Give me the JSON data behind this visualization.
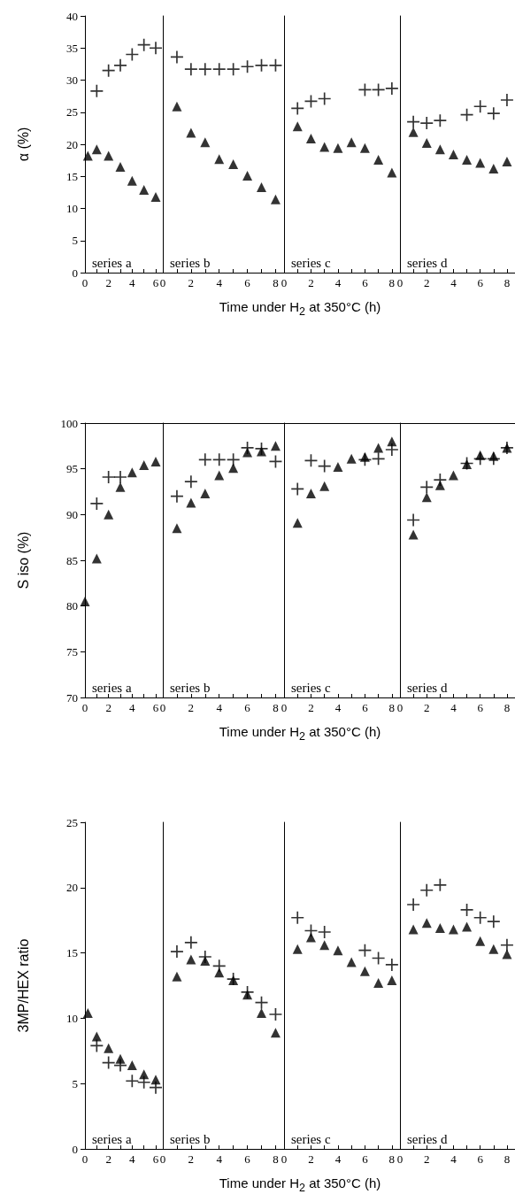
{
  "chart_data": [
    {
      "type": "scatter",
      "ylabel": "α (%)",
      "xlabel": "Time under H$_{2}$ at 350°C (h)",
      "annotations": [
        "series a"
      ],
      "xlim": [
        0,
        6.6
      ],
      "xticks": [
        0,
        {
          "value": 1,
          "label": null
        },
        2,
        {
          "value": 3,
          "label": null
        },
        4,
        {
          "value": 5,
          "label": null
        },
        6
      ],
      "ylim": [
        0,
        40
      ],
      "yticks": [
        0,
        5,
        10,
        15,
        20,
        25,
        30,
        35,
        40
      ],
      "grid": false,
      "series": [
        {
          "color": "#000000",
          "marker": "triangle",
          "x": [
            0.25,
            1,
            2,
            3,
            4,
            5,
            6
          ],
          "values": [
            18.2,
            19.2,
            18.2,
            16.5,
            14.3,
            12.9,
            11.8
          ]
        },
        {
          "color": "#000000",
          "marker": "cross",
          "x": [
            1,
            2,
            3,
            4,
            5,
            6
          ],
          "values": [
            28.3,
            31.5,
            32.3,
            34,
            35.5,
            35
          ]
        }
      ]
    },
    {
      "type": "scatter",
      "annotations": [
        "series b"
      ],
      "tick_labels": "x",
      "xlim": [
        0,
        8.6
      ],
      "xticks": [
        0,
        {
          "value": 1,
          "label": null
        },
        2,
        {
          "value": 3,
          "label": null
        },
        4,
        {
          "value": 5,
          "label": null
        },
        6,
        {
          "value": 7,
          "label": null
        },
        8
      ],
      "ylim": [
        0,
        40
      ],
      "grid": false,
      "series": [
        {
          "color": "#000000",
          "marker": "triangle",
          "x": [
            1,
            2,
            3,
            4,
            5,
            6,
            7,
            8
          ],
          "values": [
            25.9,
            21.8,
            20.3,
            17.7,
            16.9,
            15.1,
            13.3,
            11.4
          ]
        },
        {
          "color": "#000000",
          "marker": "cross",
          "x": [
            1,
            2,
            3,
            4,
            5,
            6,
            7,
            8
          ],
          "values": [
            33.6,
            31.7,
            31.7,
            31.7,
            31.7,
            32.1,
            32.3,
            32.3
          ]
        }
      ]
    },
    {
      "type": "scatter",
      "annotations": [
        "series c"
      ],
      "tick_labels": "x",
      "xlim": [
        0,
        8.6
      ],
      "xticks": [
        0,
        {
          "value": 1,
          "label": null
        },
        2,
        {
          "value": 3,
          "label": null
        },
        4,
        {
          "value": 5,
          "label": null
        },
        6,
        {
          "value": 7,
          "label": null
        },
        8
      ],
      "ylim": [
        0,
        40
      ],
      "grid": false,
      "series": [
        {
          "color": "#000000",
          "marker": "triangle",
          "x": [
            1,
            2,
            3,
            4,
            5,
            6,
            7,
            8
          ],
          "values": [
            22.8,
            20.9,
            19.6,
            19.4,
            20.3,
            19.4,
            17.6,
            15.6
          ]
        },
        {
          "color": "#000000",
          "marker": "cross",
          "x": [
            1,
            2,
            3,
            6,
            7,
            8
          ],
          "values": [
            25.6,
            26.7,
            27.1,
            28.5,
            28.5,
            28.7
          ]
        }
      ]
    },
    {
      "type": "scatter",
      "annotations": [
        "series d"
      ],
      "tick_labels": "x",
      "xlim": [
        0,
        8.6
      ],
      "xticks": [
        0,
        {
          "value": 1,
          "label": null
        },
        2,
        {
          "value": 3,
          "label": null
        },
        4,
        {
          "value": 5,
          "label": null
        },
        6,
        {
          "value": 7,
          "label": null
        },
        8
      ],
      "ylim": [
        0,
        40
      ],
      "grid": false,
      "series": [
        {
          "color": "#000000",
          "marker": "triangle",
          "x": [
            1,
            2,
            3,
            4,
            5,
            6,
            7,
            8
          ],
          "values": [
            21.9,
            20.2,
            19.2,
            18.4,
            17.6,
            17.1,
            16.2,
            17.3
          ]
        },
        {
          "color": "#000000",
          "marker": "cross",
          "x": [
            1,
            2,
            3,
            5,
            6,
            7,
            8
          ],
          "values": [
            23.5,
            23.3,
            23.7,
            24.6,
            25.9,
            24.8,
            26.9
          ]
        }
      ]
    },
    {
      "type": "scatter",
      "ylabel": "S iso (%)",
      "xlabel": "Time under H$_{2}$ at 350°C (h)",
      "annotations": [
        "series a"
      ],
      "xlim": [
        0,
        6.6
      ],
      "xticks": [
        0,
        {
          "value": 1,
          "label": null
        },
        2,
        {
          "value": 3,
          "label": null
        },
        4,
        {
          "value": 5,
          "label": null
        },
        6
      ],
      "ylim": [
        70,
        100
      ],
      "yticks": [
        70,
        75,
        80,
        85,
        90,
        95,
        100
      ],
      "grid": false,
      "series": [
        {
          "color": "#000000",
          "marker": "triangle",
          "x": [
            0,
            1,
            2,
            3,
            4,
            5,
            6
          ],
          "values": [
            80.5,
            85.2,
            90,
            93,
            94.6,
            95.4,
            95.8
          ]
        },
        {
          "color": "#000000",
          "marker": "cross",
          "x": [
            1,
            2,
            3
          ],
          "values": [
            91.2,
            94.1,
            94.1
          ]
        }
      ]
    },
    {
      "type": "scatter",
      "annotations": [
        "series b"
      ],
      "tick_labels": "x",
      "xlim": [
        0,
        8.6
      ],
      "xticks": [
        0,
        {
          "value": 1,
          "label": null
        },
        2,
        {
          "value": 3,
          "label": null
        },
        4,
        {
          "value": 5,
          "label": null
        },
        6,
        {
          "value": 7,
          "label": null
        },
        8
      ],
      "ylim": [
        70,
        100
      ],
      "grid": false,
      "series": [
        {
          "color": "#000000",
          "marker": "triangle",
          "x": [
            1,
            2,
            3,
            4,
            5,
            6,
            7,
            8
          ],
          "values": [
            88.5,
            91.3,
            92.3,
            94.3,
            95.1,
            96.8,
            96.9,
            97.5
          ]
        },
        {
          "color": "#000000",
          "marker": "cross",
          "x": [
            1,
            2,
            3,
            4,
            5,
            6,
            7,
            8
          ],
          "values": [
            92,
            93.6,
            96,
            96,
            96,
            97.3,
            97.2,
            95.8
          ]
        }
      ]
    },
    {
      "type": "scatter",
      "annotations": [
        "series c"
      ],
      "tick_labels": "x",
      "xlim": [
        0,
        8.6
      ],
      "xticks": [
        0,
        {
          "value": 1,
          "label": null
        },
        2,
        {
          "value": 3,
          "label": null
        },
        4,
        {
          "value": 5,
          "label": null
        },
        6,
        {
          "value": 7,
          "label": null
        },
        8
      ],
      "ylim": [
        70,
        100
      ],
      "grid": false,
      "series": [
        {
          "color": "#000000",
          "marker": "triangle",
          "x": [
            1,
            2,
            3,
            4,
            5,
            6,
            7,
            8
          ],
          "values": [
            89.1,
            92.3,
            93.1,
            95.2,
            96.1,
            96.3,
            97.3,
            98
          ]
        },
        {
          "color": "#000000",
          "marker": "cross",
          "x": [
            1,
            2,
            3,
            6,
            7,
            8
          ],
          "values": [
            92.8,
            95.9,
            95.3,
            96,
            96.1,
            97.1
          ]
        }
      ]
    },
    {
      "type": "scatter",
      "annotations": [
        "series d"
      ],
      "tick_labels": "x",
      "xlim": [
        0,
        8.6
      ],
      "xticks": [
        0,
        {
          "value": 1,
          "label": null
        },
        2,
        {
          "value": 3,
          "label": null
        },
        4,
        {
          "value": 5,
          "label": null
        },
        6,
        {
          "value": 7,
          "label": null
        },
        8
      ],
      "ylim": [
        70,
        100
      ],
      "grid": false,
      "series": [
        {
          "color": "#000000",
          "marker": "triangle",
          "x": [
            1,
            2,
            3,
            4,
            5,
            6,
            7,
            8
          ],
          "values": [
            87.8,
            91.9,
            93.2,
            94.3,
            95.5,
            96.5,
            96.4,
            97.3
          ]
        },
        {
          "color": "#000000",
          "marker": "cross",
          "x": [
            1,
            2,
            3,
            5,
            6,
            7,
            8
          ],
          "values": [
            89.4,
            93,
            93.8,
            95.6,
            96.1,
            96.1,
            97.3
          ]
        }
      ]
    },
    {
      "type": "scatter",
      "ylabel": "3MP/HEX ratio",
      "xlabel": "Time under H$_{2}$ at 350°C (h)",
      "annotations": [
        "series a"
      ],
      "xlim": [
        0,
        6.6
      ],
      "xticks": [
        0,
        {
          "value": 1,
          "label": null
        },
        2,
        {
          "value": 3,
          "label": null
        },
        4,
        {
          "value": 5,
          "label": null
        },
        6
      ],
      "ylim": [
        0,
        25
      ],
      "yticks": [
        0,
        5,
        10,
        15,
        20,
        25
      ],
      "grid": false,
      "series": [
        {
          "color": "#000000",
          "marker": "triangle",
          "x": [
            0.25,
            1,
            2,
            3,
            4,
            5,
            6
          ],
          "values": [
            10.4,
            8.6,
            7.7,
            6.9,
            6.4,
            5.7,
            5.3
          ]
        },
        {
          "color": "#000000",
          "marker": "cross",
          "x": [
            1,
            2,
            3,
            4,
            5,
            6
          ],
          "values": [
            7.9,
            6.6,
            6.4,
            5.2,
            5.1,
            4.7
          ]
        }
      ]
    },
    {
      "type": "scatter",
      "annotations": [
        "series b"
      ],
      "tick_labels": "x",
      "xlim": [
        0,
        8.6
      ],
      "xticks": [
        0,
        {
          "value": 1,
          "label": null
        },
        2,
        {
          "value": 3,
          "label": null
        },
        4,
        {
          "value": 5,
          "label": null
        },
        6,
        {
          "value": 7,
          "label": null
        },
        8
      ],
      "ylim": [
        0,
        25
      ],
      "grid": false,
      "series": [
        {
          "color": "#000000",
          "marker": "triangle",
          "x": [
            1,
            2,
            3,
            4,
            5,
            6,
            7,
            8
          ],
          "values": [
            13.2,
            14.5,
            14.4,
            13.5,
            12.9,
            11.8,
            10.4,
            8.9
          ]
        },
        {
          "color": "#000000",
          "marker": "cross",
          "x": [
            1,
            2,
            3,
            4,
            5,
            6,
            7,
            8
          ],
          "values": [
            15.1,
            15.8,
            14.7,
            14,
            13,
            12,
            11.2,
            10.3
          ]
        }
      ]
    },
    {
      "type": "scatter",
      "annotations": [
        "series c"
      ],
      "tick_labels": "x",
      "xlim": [
        0,
        8.6
      ],
      "xticks": [
        0,
        {
          "value": 1,
          "label": null
        },
        2,
        {
          "value": 3,
          "label": null
        },
        4,
        {
          "value": 5,
          "label": null
        },
        6,
        {
          "value": 7,
          "label": null
        },
        8
      ],
      "ylim": [
        0,
        25
      ],
      "grid": false,
      "series": [
        {
          "color": "#000000",
          "marker": "triangle",
          "x": [
            1,
            2,
            3,
            4,
            5,
            6,
            7,
            8
          ],
          "values": [
            15.3,
            16.2,
            15.6,
            15.2,
            14.3,
            13.6,
            12.7,
            12.9
          ]
        },
        {
          "color": "#000000",
          "marker": "cross",
          "x": [
            1,
            2,
            3,
            6,
            7,
            8
          ],
          "values": [
            17.7,
            16.7,
            16.6,
            15.2,
            14.6,
            14.1
          ]
        }
      ]
    },
    {
      "type": "scatter",
      "annotations": [
        "series d"
      ],
      "tick_labels": "x",
      "xlim": [
        0,
        8.6
      ],
      "xticks": [
        0,
        {
          "value": 1,
          "label": null
        },
        2,
        {
          "value": 3,
          "label": null
        },
        4,
        {
          "value": 5,
          "label": null
        },
        6,
        {
          "value": 7,
          "label": null
        },
        8
      ],
      "ylim": [
        0,
        25
      ],
      "grid": false,
      "series": [
        {
          "color": "#000000",
          "marker": "triangle",
          "x": [
            1,
            2,
            3,
            4,
            5,
            6,
            7,
            8
          ],
          "values": [
            16.8,
            17.3,
            16.9,
            16.8,
            17,
            15.9,
            15.3,
            14.9
          ]
        },
        {
          "color": "#000000",
          "marker": "cross",
          "x": [
            1,
            2,
            3,
            5,
            6,
            7,
            8
          ],
          "values": [
            18.7,
            19.8,
            20.2,
            18.3,
            17.7,
            17.4,
            15.6
          ]
        }
      ]
    }
  ]
}
